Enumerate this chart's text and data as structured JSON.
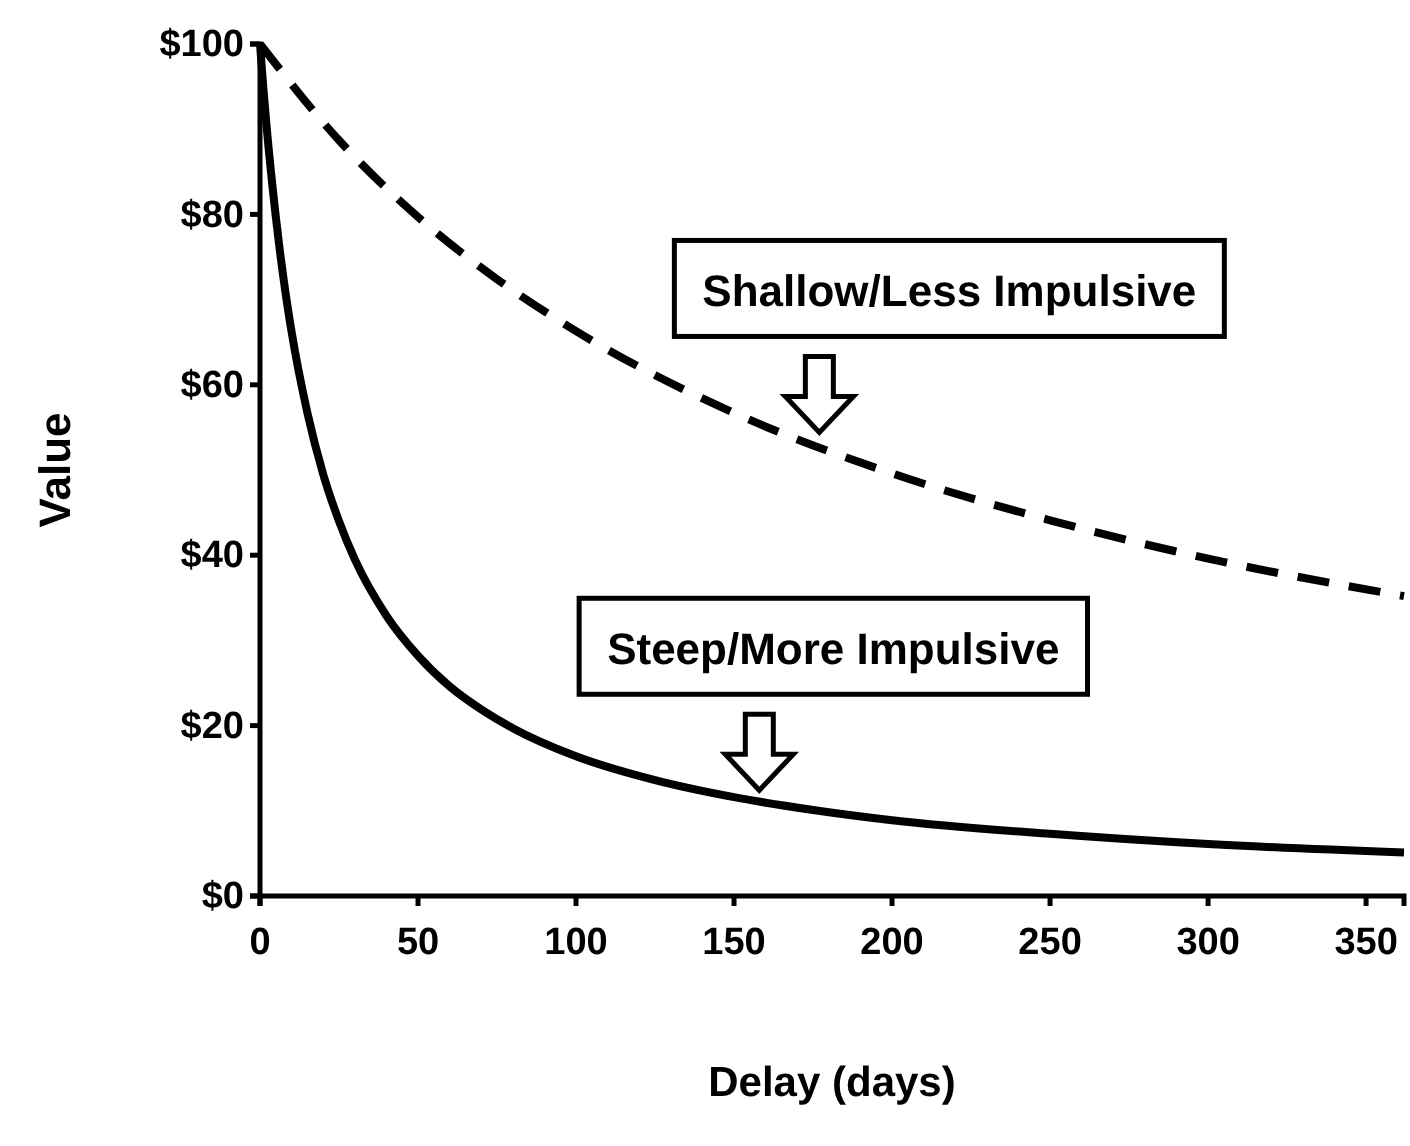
{
  "chart_data": {
    "type": "line",
    "xlabel": "Delay (days)",
    "ylabel": "Value",
    "xlim": [
      0,
      362
    ],
    "xticks": [
      0,
      50,
      100,
      150,
      200,
      250,
      300,
      350
    ],
    "ylim": [
      0,
      100
    ],
    "yticks": [
      {
        "value": 0,
        "label": "$0"
      },
      {
        "value": 20,
        "label": "$20"
      },
      {
        "value": 40,
        "label": "$40"
      },
      {
        "value": 60,
        "label": "$60"
      },
      {
        "value": 80,
        "label": "$80"
      },
      {
        "value": 100,
        "label": "$100"
      }
    ],
    "grid": false,
    "marker": "none",
    "series": [
      {
        "color": "#000000",
        "line_style": "dashed",
        "x": [
          0,
          25,
          50,
          75,
          100,
          150,
          200,
          250,
          300,
          362
        ],
        "values": [
          100,
          88.7,
          79.7,
          72.4,
          66.3,
          56.7,
          49.6,
          44.1,
          39.6,
          35.2
        ]
      },
      {
        "color": "#000000",
        "line_style": "solid",
        "x": [
          0,
          1,
          2,
          4,
          6,
          8,
          10,
          15,
          20,
          25,
          30,
          40,
          50,
          60,
          70,
          80,
          100,
          125,
          150,
          175,
          200,
          250,
          300,
          362
        ],
        "values": [
          100,
          95.1,
          90.7,
          83.1,
          76.6,
          71.0,
          66.2,
          56.7,
          49.5,
          44.0,
          39.5,
          32.9,
          28.2,
          24.6,
          21.9,
          19.7,
          16.4,
          13.6,
          11.6,
          10.1,
          8.9,
          7.3,
          6.1,
          5.1
        ]
      }
    ],
    "annotations": [
      {
        "text": "Shallow/Less Impulsive",
        "x": 177,
        "y": 53
      },
      {
        "text": "Steep/More Impulsive",
        "x": 158,
        "y": 11
      }
    ]
  }
}
